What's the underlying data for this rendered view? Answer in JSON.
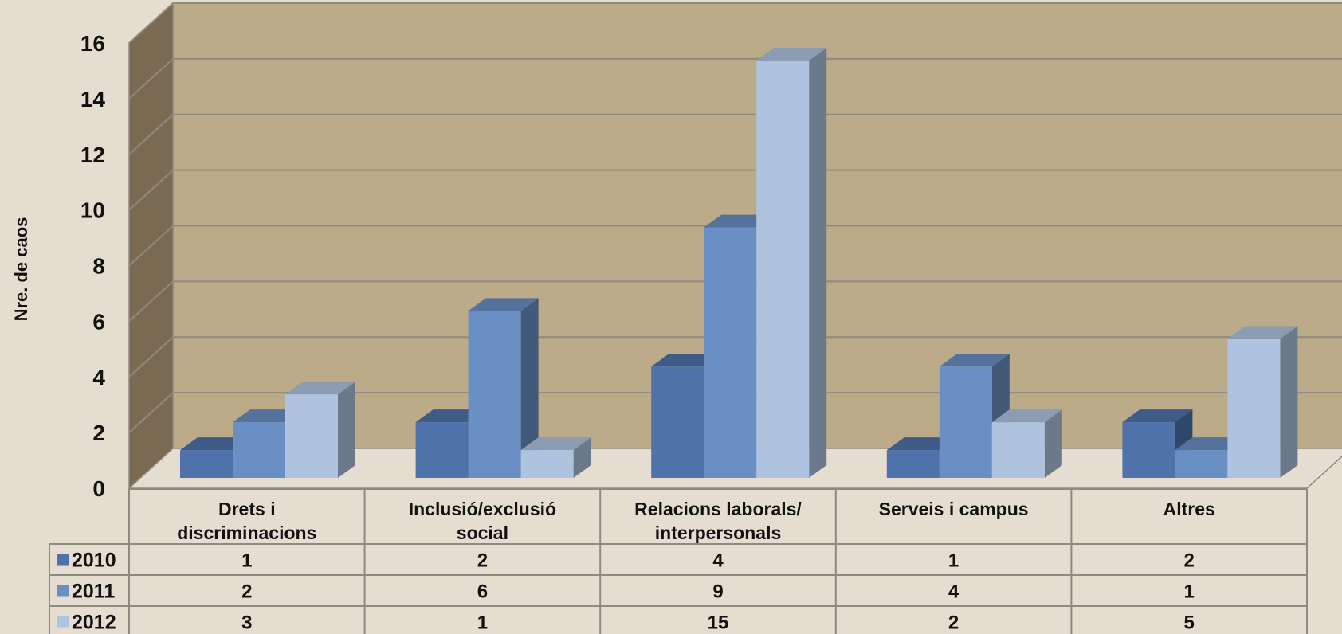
{
  "chart_data": {
    "type": "bar",
    "ylabel": "Nre. de caos",
    "ylim": [
      0,
      16
    ],
    "yticks": [
      0,
      2,
      4,
      6,
      8,
      10,
      12,
      14,
      16
    ],
    "grid": true,
    "categories": [
      [
        "Drets i",
        "discriminacions"
      ],
      [
        "Inclusió/exclusió",
        "social"
      ],
      [
        "Relacions laborals/",
        "interpersonals"
      ],
      [
        "Serveis i campus"
      ],
      [
        "Altres"
      ]
    ],
    "series": [
      {
        "name": "2010",
        "values": [
          1,
          2,
          4,
          1,
          2
        ],
        "color": "#4f72aa"
      },
      {
        "name": "2011",
        "values": [
          2,
          6,
          9,
          4,
          1
        ],
        "color": "#6a8fc4"
      },
      {
        "name": "2012",
        "values": [
          3,
          1,
          15,
          2,
          5
        ],
        "color": "#aec3e0"
      }
    ],
    "colors": {
      "back_wall": "#bcab88",
      "side_wall": "#7a6a52",
      "floor": "#e5ddd0",
      "grid_line": "#8e8a80",
      "background": "#e5ddd0"
    },
    "data_table": true
  }
}
